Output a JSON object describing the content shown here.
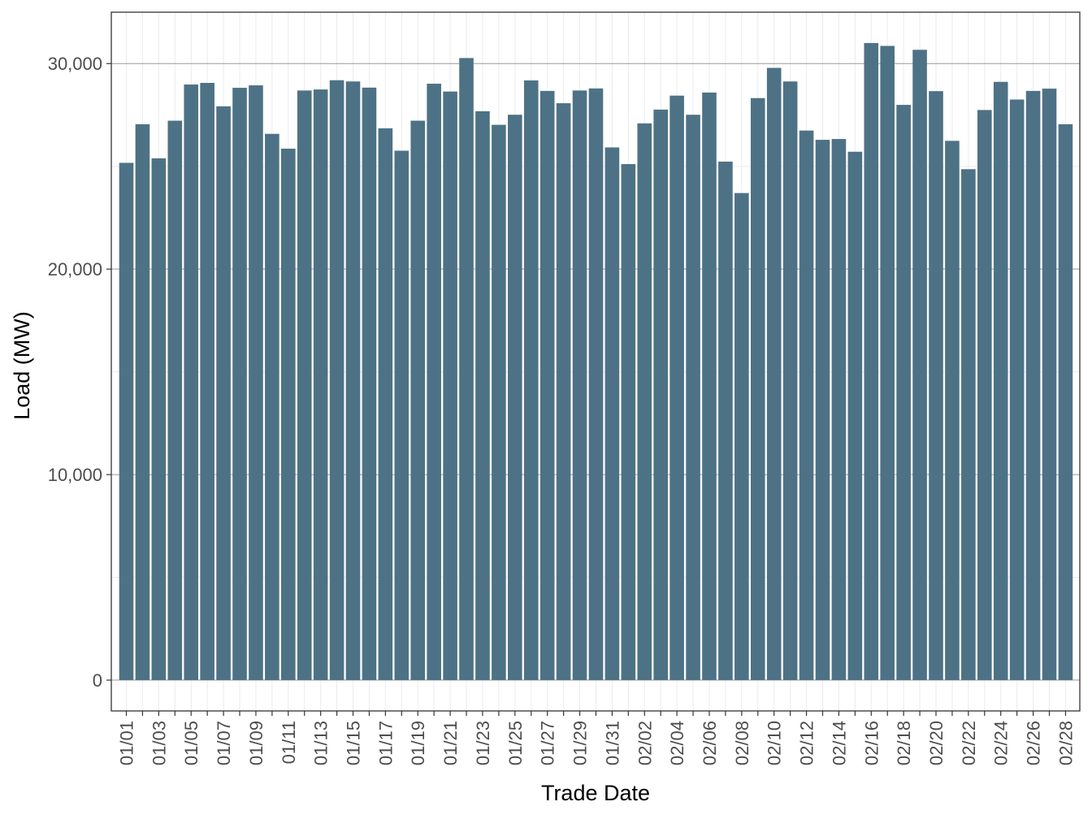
{
  "chart_data": {
    "type": "bar",
    "title": "",
    "xlabel": "Trade Date",
    "ylabel": "Load (MW)",
    "ylim": [
      -1500,
      32500
    ],
    "yticks": [
      0,
      10000,
      20000,
      30000
    ],
    "ytick_labels": [
      "0",
      "10,000",
      "20,000",
      "30,000"
    ],
    "grid": true,
    "legend": "none",
    "bar_color": "#4e7285",
    "categories": [
      "01/01",
      "01/02",
      "01/03",
      "01/04",
      "01/05",
      "01/06",
      "01/07",
      "01/08",
      "01/09",
      "01/10",
      "01/11",
      "01/12",
      "01/13",
      "01/14",
      "01/15",
      "01/16",
      "01/17",
      "01/18",
      "01/19",
      "01/20",
      "01/21",
      "01/22",
      "01/23",
      "01/24",
      "01/25",
      "01/26",
      "01/27",
      "01/28",
      "01/29",
      "01/30",
      "01/31",
      "02/01",
      "02/02",
      "02/03",
      "02/04",
      "02/05",
      "02/06",
      "02/07",
      "02/08",
      "02/09",
      "02/10",
      "02/11",
      "02/12",
      "02/13",
      "02/14",
      "02/15",
      "02/16",
      "02/17",
      "02/18",
      "02/19",
      "02/20",
      "02/21",
      "02/22",
      "02/23",
      "02/24",
      "02/25",
      "02/26",
      "02/27",
      "02/28"
    ],
    "tick_labels_shown": [
      "01/01",
      "01/03",
      "01/05",
      "01/07",
      "01/09",
      "01/11",
      "01/13",
      "01/15",
      "01/17",
      "01/19",
      "01/21",
      "01/23",
      "01/25",
      "01/27",
      "01/29",
      "01/31",
      "02/02",
      "02/04",
      "02/06",
      "02/08",
      "02/10",
      "02/12",
      "02/14",
      "02/16",
      "02/18",
      "02/20",
      "02/22",
      "02/24",
      "02/26",
      "02/28"
    ],
    "values": [
      25170,
      27050,
      25390,
      27220,
      28980,
      29060,
      27920,
      28820,
      28940,
      26580,
      25860,
      28690,
      28740,
      29190,
      29130,
      28830,
      26850,
      25760,
      27220,
      29020,
      28640,
      30270,
      27680,
      27020,
      27510,
      29180,
      28670,
      28070,
      28690,
      28790,
      25920,
      25110,
      27090,
      27760,
      28440,
      27510,
      28590,
      25230,
      23700,
      28320,
      29790,
      29130,
      26740,
      26290,
      26330,
      25710,
      31000,
      30860,
      27990,
      30670,
      28660,
      26240,
      24860,
      27740,
      29110,
      28250,
      28670,
      28780,
      27050
    ]
  }
}
